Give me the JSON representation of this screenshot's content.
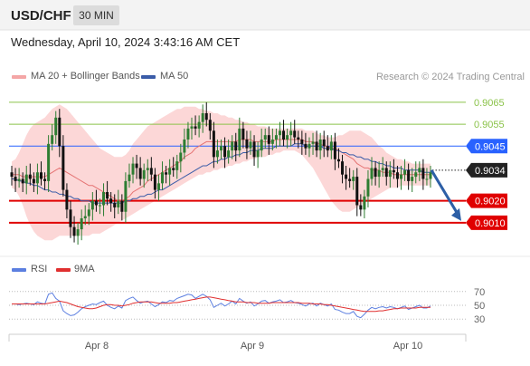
{
  "header": {
    "symbol": "USD/CHF",
    "timeframe": "30 MIN"
  },
  "datetime": "Wednesday, April 10, 2024 3:43:16 AM CET",
  "legend": {
    "ma20_label": "MA 20 + Bollinger Bands",
    "ma50_label": "MA 50",
    "research": "Research © 2024 Trading Central"
  },
  "colors": {
    "resistance": "#8bc34a",
    "pivot": "#2962ff",
    "support": "#e00000",
    "current": "#222222",
    "ma20": "#e57373",
    "ma50": "#3a5ca8",
    "bands": "#fbd0d0",
    "candle_up": "#2e7d32",
    "candle_down": "#111111",
    "arrow": "#2d5fa6",
    "rsi": "#5c7fe0",
    "rsi_ma": "#e03030"
  },
  "chart_data": [
    {
      "type": "candlestick",
      "title": "USD/CHF",
      "ylim": [
        0.9,
        0.9072
      ],
      "x_labels": [
        "Apr 8",
        "Apr 9",
        "Apr 10"
      ],
      "levels": [
        {
          "value": 0.9065,
          "label": "0.9065",
          "kind": "resistance"
        },
        {
          "value": 0.9055,
          "label": "0.9055",
          "kind": "resistance"
        },
        {
          "value": 0.9045,
          "label": "0.9045",
          "kind": "pivot"
        },
        {
          "value": 0.9034,
          "label": "0.9034",
          "kind": "current"
        },
        {
          "value": 0.902,
          "label": "0.9020",
          "kind": "support"
        },
        {
          "value": 0.901,
          "label": "0.9010",
          "kind": "support"
        }
      ],
      "close": [
        0.9031,
        0.9029,
        0.903,
        0.9028,
        0.9032,
        0.903,
        0.9028,
        0.9033,
        0.903,
        0.9029,
        0.9046,
        0.905,
        0.9058,
        0.9045,
        0.9025,
        0.9016,
        0.9008,
        0.9004,
        0.9007,
        0.9012,
        0.9013,
        0.9016,
        0.902,
        0.9018,
        0.9018,
        0.9024,
        0.9021,
        0.9019,
        0.9017,
        0.902,
        0.9015,
        0.9029,
        0.9032,
        0.9037,
        0.9035,
        0.903,
        0.9034,
        0.9035,
        0.9032,
        0.9025,
        0.9028,
        0.9033,
        0.9032,
        0.9035,
        0.9034,
        0.9038,
        0.9042,
        0.9048,
        0.9053,
        0.9054,
        0.9053,
        0.9056,
        0.906,
        0.9057,
        0.9052,
        0.904,
        0.9043,
        0.9045,
        0.904,
        0.9043,
        0.9047,
        0.9043,
        0.9053,
        0.9048,
        0.9044,
        0.9047,
        0.904,
        0.9043,
        0.9048,
        0.905,
        0.9046,
        0.9048,
        0.905,
        0.9052,
        0.9048,
        0.905,
        0.9052,
        0.9049,
        0.9048,
        0.9046,
        0.9044,
        0.9046,
        0.9047,
        0.9043,
        0.9048,
        0.9045,
        0.9043,
        0.9047,
        0.9039,
        0.9038,
        0.9032,
        0.903,
        0.9029,
        0.9031,
        0.9018,
        0.9016,
        0.9022,
        0.903,
        0.9035,
        0.9031,
        0.9034,
        0.9035,
        0.9031,
        0.9034,
        0.9033,
        0.903,
        0.9032,
        0.9034,
        0.9029,
        0.9031,
        0.9033,
        0.9035,
        0.903,
        0.903,
        0.9033
      ],
      "ma20": [
        0.9032,
        0.9032,
        0.9032,
        0.9031,
        0.9031,
        0.9031,
        0.9031,
        0.9031,
        0.9031,
        0.9031,
        0.9032,
        0.9033,
        0.9034,
        0.9035,
        0.9034,
        0.9033,
        0.9032,
        0.9031,
        0.903,
        0.9029,
        0.9028,
        0.9027,
        0.9027,
        0.9026,
        0.9025,
        0.9024,
        0.9023,
        0.9022,
        0.9021,
        0.902,
        0.902,
        0.9021,
        0.9022,
        0.9024,
        0.9025,
        0.9026,
        0.9027,
        0.9029,
        0.903,
        0.9031,
        0.9032,
        0.9033,
        0.9034,
        0.9035,
        0.9036,
        0.9037,
        0.9038,
        0.904,
        0.9041,
        0.9042,
        0.9044,
        0.9045,
        0.9046,
        0.9047,
        0.9047,
        0.9047,
        0.9047,
        0.9047,
        0.9047,
        0.9047,
        0.9047,
        0.9047,
        0.9048,
        0.9048,
        0.9048,
        0.9048,
        0.9047,
        0.9047,
        0.9047,
        0.9047,
        0.9047,
        0.9047,
        0.9048,
        0.9048,
        0.9048,
        0.9048,
        0.9048,
        0.9048,
        0.9048,
        0.9048,
        0.9047,
        0.9047,
        0.9047,
        0.9046,
        0.9046,
        0.9045,
        0.9045,
        0.9044,
        0.9044,
        0.9043,
        0.9042,
        0.9041,
        0.904,
        0.9039,
        0.9037,
        0.9036,
        0.9035,
        0.9035,
        0.9034,
        0.9034,
        0.9034,
        0.9033,
        0.9033,
        0.9033,
        0.9032,
        0.9032,
        0.9032,
        0.9032,
        0.9032,
        0.9032,
        0.9032,
        0.9032,
        0.9032,
        0.9032,
        0.9032
      ],
      "bb_upper": [
        0.9038,
        0.9039,
        0.9042,
        0.9046,
        0.905,
        0.9053,
        0.9055,
        0.9056,
        0.9057,
        0.9058,
        0.906,
        0.9062,
        0.9063,
        0.9064,
        0.9063,
        0.9062,
        0.906,
        0.9058,
        0.9056,
        0.9054,
        0.9052,
        0.905,
        0.9048,
        0.9046,
        0.9044,
        0.9043,
        0.9042,
        0.9041,
        0.904,
        0.904,
        0.904,
        0.9041,
        0.9043,
        0.9046,
        0.9048,
        0.905,
        0.9052,
        0.9054,
        0.9055,
        0.9056,
        0.9057,
        0.9058,
        0.9059,
        0.906,
        0.9061,
        0.9062,
        0.9062,
        0.9063,
        0.9063,
        0.9063,
        0.9063,
        0.9062,
        0.9062,
        0.9061,
        0.9061,
        0.906,
        0.906,
        0.9059,
        0.9059,
        0.9058,
        0.9058,
        0.9057,
        0.9057,
        0.9056,
        0.9056,
        0.9055,
        0.9055,
        0.9054,
        0.9054,
        0.9054,
        0.9053,
        0.9053,
        0.9053,
        0.9053,
        0.9053,
        0.9053,
        0.9053,
        0.9053,
        0.9053,
        0.9053,
        0.9052,
        0.9052,
        0.9052,
        0.9051,
        0.905,
        0.905,
        0.9049,
        0.9049,
        0.9049,
        0.905,
        0.905,
        0.9051,
        0.9052,
        0.9052,
        0.9052,
        0.9052,
        0.9051,
        0.905,
        0.9049,
        0.9047,
        0.9045,
        0.9044,
        0.9042,
        0.9041,
        0.904,
        0.9039,
        0.9039,
        0.9038,
        0.9038,
        0.9037,
        0.9037,
        0.9037,
        0.9037,
        0.9037,
        0.9037
      ],
      "bb_lower": [
        0.9026,
        0.9025,
        0.9022,
        0.9018,
        0.9013,
        0.9009,
        0.9006,
        0.9004,
        0.9003,
        0.9002,
        0.9002,
        0.9002,
        0.9003,
        0.9004,
        0.9004,
        0.9004,
        0.9004,
        0.9004,
        0.9004,
        0.9004,
        0.9004,
        0.9004,
        0.9005,
        0.9005,
        0.9005,
        0.9006,
        0.9007,
        0.9008,
        0.9009,
        0.901,
        0.9011,
        0.9012,
        0.9013,
        0.9014,
        0.9015,
        0.9016,
        0.9017,
        0.9018,
        0.9019,
        0.902,
        0.9021,
        0.9022,
        0.9023,
        0.9024,
        0.9025,
        0.9026,
        0.9027,
        0.9028,
        0.9029,
        0.903,
        0.9031,
        0.9032,
        0.9032,
        0.9033,
        0.9033,
        0.9034,
        0.9034,
        0.9035,
        0.9035,
        0.9036,
        0.9036,
        0.9037,
        0.9037,
        0.9038,
        0.9038,
        0.9039,
        0.9039,
        0.904,
        0.904,
        0.904,
        0.9041,
        0.9041,
        0.9042,
        0.9042,
        0.9043,
        0.9043,
        0.9043,
        0.9043,
        0.9042,
        0.9041,
        0.9039,
        0.9037,
        0.9035,
        0.9032,
        0.9029,
        0.9026,
        0.9023,
        0.902,
        0.9018,
        0.9016,
        0.9015,
        0.9015,
        0.9015,
        0.9016,
        0.9017,
        0.9018,
        0.9019,
        0.902,
        0.9021,
        0.9022,
        0.9023,
        0.9024,
        0.9025,
        0.9026,
        0.9026,
        0.9026,
        0.9027,
        0.9027,
        0.9027,
        0.9027,
        0.9027,
        0.9027,
        0.9027,
        0.9027,
        0.9027
      ],
      "ma50": [
        0.903,
        0.903,
        0.9029,
        0.9029,
        0.9028,
        0.9028,
        0.9027,
        0.9027,
        0.9026,
        0.9025,
        0.9025,
        0.9024,
        0.9024,
        0.9023,
        0.9023,
        0.9022,
        0.9022,
        0.9021,
        0.9021,
        0.902,
        0.902,
        0.902,
        0.9019,
        0.9019,
        0.9019,
        0.9019,
        0.9019,
        0.9019,
        0.9019,
        0.9019,
        0.9019,
        0.902,
        0.902,
        0.9021,
        0.9021,
        0.9022,
        0.9022,
        0.9023,
        0.9023,
        0.9024,
        0.9025,
        0.9025,
        0.9026,
        0.9027,
        0.9028,
        0.9029,
        0.903,
        0.9031,
        0.9032,
        0.9033,
        0.9034,
        0.9035,
        0.9036,
        0.9036,
        0.9037,
        0.9038,
        0.9038,
        0.9039,
        0.9039,
        0.904,
        0.904,
        0.9041,
        0.9041,
        0.9042,
        0.9042,
        0.9043,
        0.9043,
        0.9043,
        0.9044,
        0.9044,
        0.9044,
        0.9044,
        0.9045,
        0.9045,
        0.9045,
        0.9045,
        0.9045,
        0.9046,
        0.9046,
        0.9046,
        0.9045,
        0.9045,
        0.9045,
        0.9045,
        0.9045,
        0.9044,
        0.9044,
        0.9044,
        0.9043,
        0.9043,
        0.9042,
        0.9042,
        0.9041,
        0.9041,
        0.904,
        0.904,
        0.9039,
        0.9039,
        0.9038,
        0.9038,
        0.9037,
        0.9037,
        0.9036,
        0.9036,
        0.9035,
        0.9035,
        0.9035,
        0.9034,
        0.9034,
        0.9034,
        0.9034,
        0.9034,
        0.9033,
        0.9033,
        0.9033
      ],
      "forecast": {
        "from": 0.9034,
        "to": 0.901
      }
    },
    {
      "type": "line",
      "title": "RSI",
      "series": [
        {
          "name": "RSI",
          "values": [
            52,
            52,
            51,
            52,
            53,
            52,
            51,
            55,
            53,
            52,
            66,
            68,
            60,
            56,
            42,
            38,
            35,
            36,
            40,
            45,
            48,
            50,
            52,
            51,
            54,
            56,
            50,
            47,
            45,
            49,
            46,
            57,
            60,
            62,
            57,
            53,
            55,
            56,
            52,
            48,
            51,
            55,
            54,
            57,
            56,
            60,
            62,
            64,
            66,
            65,
            60,
            63,
            66,
            63,
            58,
            47,
            50,
            53,
            49,
            52,
            56,
            52,
            60,
            56,
            53,
            55,
            49,
            52,
            56,
            57,
            53,
            55,
            56,
            58,
            54,
            55,
            57,
            54,
            53,
            51,
            49,
            52,
            53,
            49,
            53,
            51,
            49,
            52,
            44,
            43,
            40,
            38,
            38,
            41,
            34,
            32,
            37,
            43,
            47,
            45,
            47,
            48,
            46,
            48,
            47,
            45,
            47,
            49,
            44,
            46,
            48,
            50,
            46,
            46,
            49
          ]
        },
        {
          "name": "9MA",
          "values": [
            52,
            52,
            52,
            52,
            52,
            52,
            52,
            52,
            52,
            52,
            53,
            54,
            55,
            56,
            55,
            54,
            52,
            50,
            48,
            47,
            46,
            45,
            45,
            46,
            48,
            50,
            51,
            51,
            50,
            50,
            49,
            50,
            51,
            53,
            54,
            55,
            55,
            55,
            55,
            54,
            53,
            53,
            53,
            53,
            54,
            54,
            55,
            56,
            57,
            58,
            59,
            60,
            61,
            62,
            62,
            61,
            60,
            59,
            58,
            57,
            56,
            55,
            55,
            55,
            54,
            54,
            54,
            53,
            53,
            53,
            53,
            54,
            54,
            54,
            54,
            54,
            54,
            54,
            54,
            53,
            53,
            53,
            52,
            52,
            52,
            51,
            51,
            50,
            49,
            48,
            47,
            46,
            45,
            44,
            43,
            42,
            41,
            41,
            41,
            41,
            42,
            42,
            43,
            44,
            45,
            45,
            46,
            46,
            46,
            46,
            46,
            47,
            47,
            47,
            47
          ]
        }
      ],
      "ylim": [
        25,
        75
      ],
      "levels": [
        {
          "value": 70,
          "label": "70"
        },
        {
          "value": 50,
          "label": "50"
        },
        {
          "value": 30,
          "label": "30"
        }
      ]
    }
  ]
}
